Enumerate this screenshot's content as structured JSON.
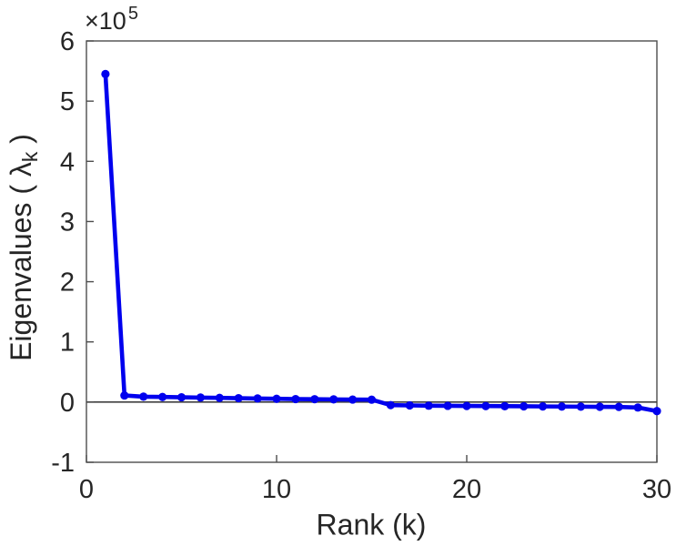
{
  "figure": {
    "background": "#ffffff"
  },
  "chart_data": {
    "type": "line",
    "title": "",
    "xlabel": "Rank (k)",
    "ylabel": "Eigenvalues ( λk )",
    "ylabel_parts": {
      "prefix": "Eigenvalues ( ",
      "symbol": "λ",
      "subscript": "k",
      "suffix": " )"
    },
    "y_axis_multiplier": {
      "base": "×10",
      "exponent": "5"
    },
    "x": [
      1,
      2,
      3,
      4,
      5,
      6,
      7,
      8,
      9,
      10,
      11,
      12,
      13,
      14,
      15,
      16,
      17,
      18,
      19,
      20,
      21,
      22,
      23,
      24,
      25,
      26,
      27,
      28,
      29,
      30
    ],
    "series": [
      {
        "name": "eigenvalues",
        "color": "#0000EE",
        "marker": "circle",
        "values": [
          545000,
          11000,
          9000,
          8500,
          8000,
          7500,
          7000,
          6500,
          6000,
          5500,
          5000,
          4800,
          4500,
          4200,
          4000,
          -5000,
          -5500,
          -6000,
          -6200,
          -6400,
          -6600,
          -6800,
          -7000,
          -7200,
          -7400,
          -7600,
          -7800,
          -8000,
          -9000,
          -15000
        ]
      }
    ],
    "xlim": [
      0,
      30
    ],
    "ylim": [
      -100000,
      600000
    ],
    "x_ticks": {
      "values": [
        0,
        10,
        20,
        30
      ],
      "labels": [
        "0",
        "10",
        "20",
        "30"
      ]
    },
    "y_ticks": {
      "values": [
        -100000,
        0,
        100000,
        200000,
        300000,
        400000,
        500000,
        600000
      ],
      "labels": [
        "-1",
        "0",
        "1",
        "2",
        "3",
        "4",
        "5",
        "6"
      ]
    },
    "grid": false,
    "legend": null,
    "zero_reference_line": true,
    "axis_color": "#4d4d4d",
    "zero_line_color": "#404040",
    "text_color": "#262626"
  }
}
